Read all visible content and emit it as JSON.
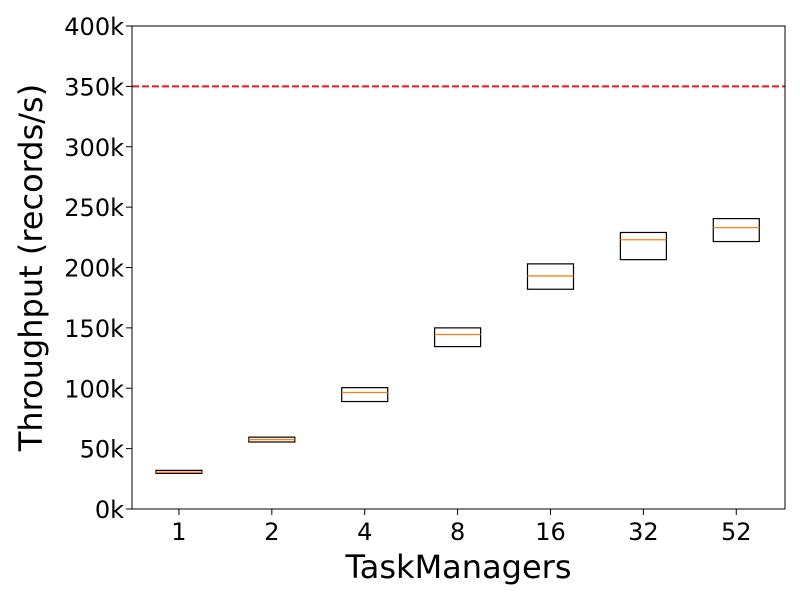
{
  "chart_data": {
    "type": "box",
    "title": "",
    "xlabel": "TaskManagers",
    "ylabel": "Throughput (records/s)",
    "categories": [
      "1",
      "2",
      "4",
      "8",
      "16",
      "32",
      "52"
    ],
    "series": [
      {
        "boxes": [
          {
            "q1": 29500,
            "median": 30500,
            "q3": 32000,
            "whisker_low": 29500,
            "whisker_high": 32000
          },
          {
            "q1": 55500,
            "median": 57500,
            "q3": 59500,
            "whisker_low": 55500,
            "whisker_high": 59500
          },
          {
            "q1": 89000,
            "median": 96500,
            "q3": 100500,
            "whisker_low": 89000,
            "whisker_high": 100500
          },
          {
            "q1": 134500,
            "median": 144500,
            "q3": 150000,
            "whisker_low": 134500,
            "whisker_high": 150000
          },
          {
            "q1": 182000,
            "median": 193000,
            "q3": 203000,
            "whisker_low": 182000,
            "whisker_high": 203000
          },
          {
            "q1": 206500,
            "median": 223000,
            "q3": 229000,
            "whisker_low": 206500,
            "whisker_high": 229000
          },
          {
            "q1": 221500,
            "median": 233000,
            "q3": 240500,
            "whisker_low": 221500,
            "whisker_high": 240500
          }
        ]
      }
    ],
    "reference_line": {
      "value": 350000,
      "style": "dashed",
      "color": "#e41a1c"
    },
    "ylim": [
      0,
      400000
    ],
    "yticks": [
      0,
      50000,
      100000,
      150000,
      200000,
      250000,
      300000,
      350000,
      400000
    ],
    "ytick_labels": [
      "0k",
      "50k",
      "100k",
      "150k",
      "200k",
      "250k",
      "300k",
      "350k",
      "400k"
    ],
    "grid": false,
    "colors": {
      "box_edge": "#000000",
      "median": "#ff7f0e",
      "reference": "#e41a1c"
    }
  }
}
